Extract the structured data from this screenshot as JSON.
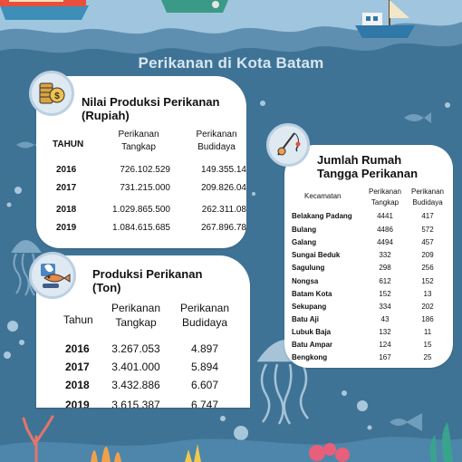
{
  "title": "Perikanan di Kota Batam",
  "nilai_produksi": {
    "title_line1": "Nilai Produksi Perikanan",
    "title_line2": "(Rupiah)",
    "col_tahun": "TAHUN",
    "col_tangkap_1": "Perikanan",
    "col_tangkap_2": "Tangkap",
    "col_budidaya_1": "Perikanan",
    "col_budidaya_2": "Budidaya",
    "rows": [
      {
        "tahun": "2016",
        "tangkap": "726.102.529",
        "budidaya": "149.355.14"
      },
      {
        "tahun": "2017",
        "tangkap": "731.215.000",
        "budidaya": "209.826.04"
      },
      {
        "tahun": "2018",
        "tangkap": "1.029.865.500",
        "budidaya": "262.311.08"
      },
      {
        "tahun": "2019",
        "tangkap": "1.084.615.685",
        "budidaya": "267.896.78"
      }
    ]
  },
  "produksi": {
    "title_line1": "Produksi Perikanan",
    "title_line2": "(Ton)",
    "col_tahun": "Tahun",
    "col_tangkap_1": "Perikanan",
    "col_tangkap_2": "Tangkap",
    "col_budidaya_1": "Perikanan",
    "col_budidaya_2": "Budidaya",
    "rows": [
      {
        "tahun": "2016",
        "tangkap": "3.267.053",
        "budidaya": "4.897"
      },
      {
        "tahun": "2017",
        "tangkap": "3.401.000",
        "budidaya": "5.894"
      },
      {
        "tahun": "2018",
        "tangkap": "3.432.886",
        "budidaya": "6.607"
      },
      {
        "tahun": "2019",
        "tangkap": "3.615.387",
        "budidaya": "6.747"
      }
    ]
  },
  "rumah_tangga": {
    "title_line1": "Jumlah Rumah",
    "title_line2": "Tangga Perikanan",
    "col_kecamatan": "Kecamatan",
    "col_tangkap_1": "Perikanan",
    "col_tangkap_2": "Tangkap",
    "col_budidaya_1": "Perikanan",
    "col_budidaya_2": "Budidaya",
    "rows": [
      {
        "kecamatan": "Belakang Padang",
        "tangkap": "4441",
        "budidaya": "417"
      },
      {
        "kecamatan": "Bulang",
        "tangkap": "4486",
        "budidaya": "572"
      },
      {
        "kecamatan": "Galang",
        "tangkap": "4494",
        "budidaya": "457"
      },
      {
        "kecamatan": "Sungai Beduk",
        "tangkap": "332",
        "budidaya": "209"
      },
      {
        "kecamatan": "Sagulung",
        "tangkap": "298",
        "budidaya": "256"
      },
      {
        "kecamatan": "Nongsa",
        "tangkap": "612",
        "budidaya": "152"
      },
      {
        "kecamatan": "Batam Kota",
        "tangkap": "152",
        "budidaya": "13"
      },
      {
        "kecamatan": "Sekupang",
        "tangkap": "334",
        "budidaya": "202"
      },
      {
        "kecamatan": "Batu Aji",
        "tangkap": "43",
        "budidaya": "186"
      },
      {
        "kecamatan": "Lubuk Baja",
        "tangkap": "132",
        "budidaya": "11"
      },
      {
        "kecamatan": "Batu Ampar",
        "tangkap": "124",
        "budidaya": "15"
      },
      {
        "kecamatan": "Bengkong",
        "tangkap": "167",
        "budidaya": "25"
      }
    ]
  },
  "colors": {
    "background": "#3f7395",
    "title": "#d6e6f2",
    "card": "#ffffff"
  },
  "icons": [
    "coins-icon",
    "fishing-rod-icon",
    "fish-catch-icon",
    "boat-icon",
    "fish-silhouette-icon",
    "jellyfish-icon",
    "coral-icon",
    "bubble-icon"
  ]
}
